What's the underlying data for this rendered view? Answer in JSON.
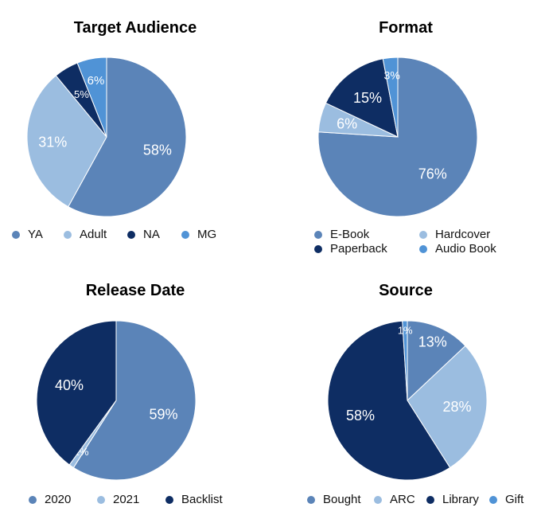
{
  "chart_data": [
    {
      "type": "pie",
      "title": "Target Audience",
      "slices": [
        {
          "label": "YA",
          "value": 58,
          "display": "58%",
          "color": "#5b84b8"
        },
        {
          "label": "Adult",
          "value": 31,
          "display": "31%",
          "color": "#9bbde0"
        },
        {
          "label": "NA",
          "value": 5,
          "display": "5%",
          "color": "#0e2d63"
        },
        {
          "label": "MG",
          "value": 6,
          "display": "6%",
          "color": "#5093d6"
        }
      ],
      "legend_position": "bottom"
    },
    {
      "type": "pie",
      "title": "Format",
      "slices": [
        {
          "label": "E-Book",
          "value": 76,
          "display": "76%",
          "color": "#5b84b8"
        },
        {
          "label": "Hardcover",
          "value": 6,
          "display": "6%",
          "color": "#9bbde0"
        },
        {
          "label": "Paperback",
          "value": 15,
          "display": "15%",
          "color": "#0e2d63"
        },
        {
          "label": "Audio Book",
          "value": 3,
          "display": "3%",
          "color": "#5093d6"
        }
      ],
      "legend_position": "bottom"
    },
    {
      "type": "pie",
      "title": "Release Date",
      "slices": [
        {
          "label": "2020",
          "value": 59,
          "display": "59%",
          "color": "#5b84b8"
        },
        {
          "label": "2021",
          "value": 1,
          "display": "1%",
          "color": "#9bbde0"
        },
        {
          "label": "Backlist",
          "value": 40,
          "display": "40%",
          "color": "#0e2d63"
        }
      ],
      "legend_position": "bottom"
    },
    {
      "type": "pie",
      "title": "Source",
      "slices": [
        {
          "label": "Bought",
          "value": 13,
          "display": "13%",
          "color": "#5b84b8"
        },
        {
          "label": "ARC",
          "value": 28,
          "display": "28%",
          "color": "#9bbde0"
        },
        {
          "label": "Library",
          "value": 58,
          "display": "58%",
          "color": "#0e2d63"
        },
        {
          "label": "Gift",
          "value": 1,
          "display": "1%",
          "color": "#5093d6"
        }
      ],
      "legend_position": "bottom"
    }
  ]
}
